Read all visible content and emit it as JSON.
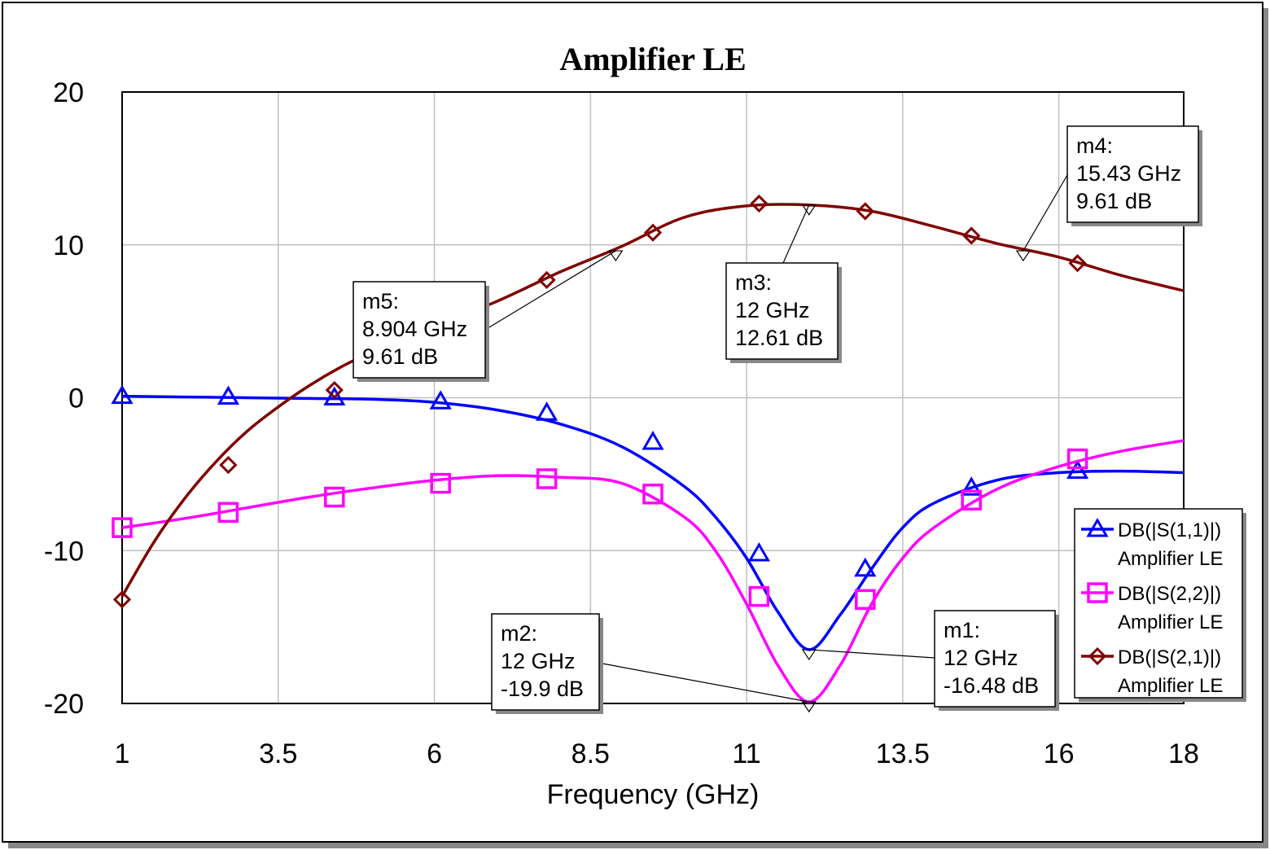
{
  "chart_data": {
    "type": "line",
    "title": "Amplifier LE",
    "xlabel": "Frequency (GHz)",
    "ylabel": "",
    "xlim": [
      1,
      18
    ],
    "ylim": [
      -20,
      20
    ],
    "x_ticks": [
      "1",
      "3.5",
      "6",
      "8.5",
      "11",
      "13.5",
      "16",
      "18"
    ],
    "y_ticks": [
      "20",
      "10",
      "0",
      "-10",
      "-20"
    ],
    "x_tick_values": [
      1,
      3.5,
      6,
      8.5,
      11,
      13.5,
      16,
      18
    ],
    "y_tick_values": [
      20,
      10,
      0,
      -10,
      -20
    ],
    "grid": true,
    "legend_position": "bottom-right",
    "series": [
      {
        "name": "DB(|S(1,1)|)",
        "subtitle": "Amplifier LE",
        "color": "#0000ff",
        "marker": "triangle",
        "x": [
          1,
          2,
          3,
          4,
          5,
          6,
          7,
          8,
          9,
          10,
          10.5,
          11,
          11.5,
          12,
          12.5,
          13,
          13.5,
          14,
          15,
          16,
          17,
          18
        ],
        "y": [
          0.1,
          0.05,
          0.0,
          -0.05,
          -0.1,
          -0.3,
          -0.8,
          -1.7,
          -3.2,
          -5.8,
          -7.8,
          -10.5,
          -14,
          -16.48,
          -14.2,
          -11.2,
          -8.5,
          -6.9,
          -5.4,
          -4.9,
          -4.8,
          -4.9
        ],
        "marker_x": [
          1,
          2.7,
          4.4,
          6.1,
          7.8,
          9.5,
          11.2,
          12.9,
          14.6,
          16.3
        ],
        "marker_y": [
          0.1,
          0.05,
          0.0,
          -0.25,
          -1.0,
          -2.9,
          -10.2,
          -11.2,
          -5.9,
          -4.8
        ]
      },
      {
        "name": "DB(|S(2,2)|)",
        "subtitle": "Amplifier LE",
        "color": "#ff00ff",
        "marker": "square",
        "x": [
          1,
          2,
          3,
          4,
          5,
          6,
          7,
          8,
          9,
          10,
          10.5,
          11,
          11.5,
          12,
          12.5,
          13,
          13.5,
          14,
          15,
          16,
          17,
          18
        ],
        "y": [
          -8.5,
          -7.9,
          -7.2,
          -6.5,
          -5.9,
          -5.4,
          -5.1,
          -5.2,
          -5.6,
          -7.8,
          -10,
          -13.5,
          -17.5,
          -19.9,
          -17.5,
          -13.5,
          -10.5,
          -8.5,
          -6,
          -4.5,
          -3.5,
          -2.8
        ],
        "marker_x": [
          1,
          2.7,
          4.4,
          6.1,
          7.8,
          9.5,
          11.2,
          12.9,
          14.6,
          16.3
        ],
        "marker_y": [
          -8.5,
          -7.5,
          -6.5,
          -5.6,
          -5.3,
          -6.3,
          -13.0,
          -13.2,
          -6.7,
          -4.0
        ]
      },
      {
        "name": "DB(|S(2,1)|)",
        "subtitle": "Amplifier LE",
        "color": "#800000",
        "marker": "diamond",
        "x": [
          1,
          1.5,
          2,
          2.5,
          3,
          3.5,
          4,
          4.5,
          5,
          5.5,
          6,
          7,
          8,
          9,
          10,
          11,
          12,
          13,
          14,
          15,
          16,
          17,
          18
        ],
        "y": [
          -13,
          -9.5,
          -6.6,
          -4.2,
          -2.2,
          -0.6,
          0.8,
          2.0,
          3.0,
          3.9,
          4.7,
          6.3,
          8.2,
          9.9,
          11.8,
          12.55,
          12.61,
          12.2,
          11.2,
          10.1,
          9.2,
          8.0,
          7.0
        ],
        "marker_x": [
          1,
          2.7,
          4.4,
          6.1,
          7.8,
          9.5,
          11.2,
          12.9,
          14.6,
          16.3
        ],
        "marker_y": [
          -13.2,
          -4.4,
          0.5,
          5.0,
          7.7,
          10.8,
          12.7,
          12.2,
          10.6,
          8.8
        ]
      }
    ],
    "markers": [
      {
        "id": "m1",
        "label": "m1:",
        "freq": "12 GHz",
        "value": "-16.48 dB",
        "x": 12,
        "y": -16.48
      },
      {
        "id": "m2",
        "label": "m2:",
        "freq": "12 GHz",
        "value": "-19.9 dB",
        "x": 12,
        "y": -19.9
      },
      {
        "id": "m3",
        "label": "m3:",
        "freq": "12 GHz",
        "value": "12.61 dB",
        "x": 12,
        "y": 12.61
      },
      {
        "id": "m4",
        "label": "m4:",
        "freq": "15.43 GHz",
        "value": "9.61 dB",
        "x": 15.43,
        "y": 9.61
      },
      {
        "id": "m5",
        "label": "m5:",
        "freq": "8.904 GHz",
        "value": "9.61 dB",
        "x": 8.904,
        "y": 9.61
      }
    ]
  }
}
